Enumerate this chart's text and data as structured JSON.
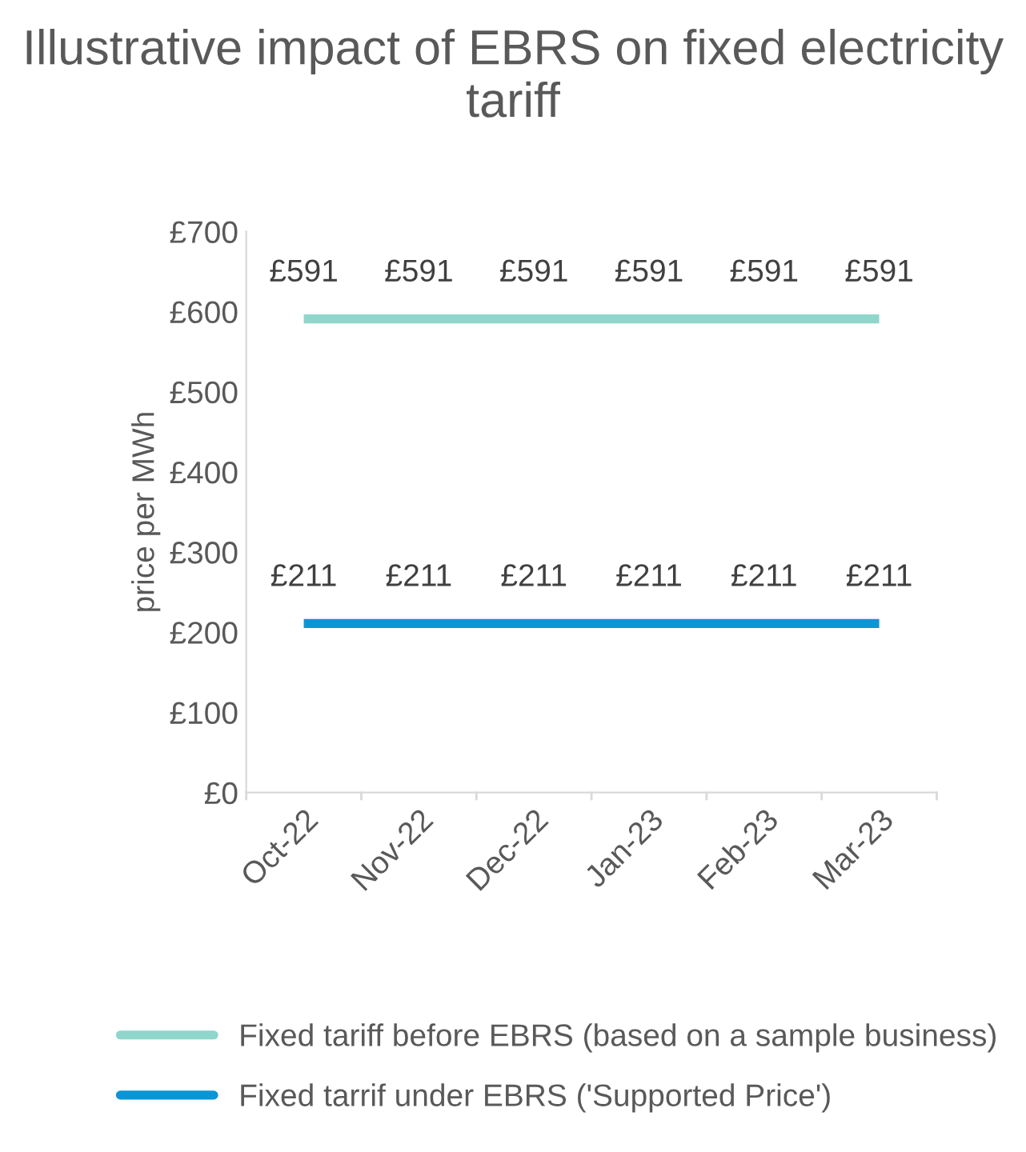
{
  "chart_data": {
    "type": "line",
    "title": "Illustrative impact of EBRS on fixed electricity tariff",
    "ylabel": "price per MWh",
    "categories": [
      "Oct-22",
      "Nov-22",
      "Dec-22",
      "Jan-23",
      "Feb-23",
      "Mar-23"
    ],
    "series": [
      {
        "name": "Fixed tariff before EBRS (based on a sample business)",
        "color": "#8fd6cc",
        "values": [
          591,
          591,
          591,
          591,
          591,
          591
        ],
        "value_labels": [
          "£591",
          "£591",
          "£591",
          "£591",
          "£591",
          "£591"
        ]
      },
      {
        "name": "Fixed tarrif under EBRS ('Supported Price')",
        "color": "#0a96d6",
        "values": [
          211,
          211,
          211,
          211,
          211,
          211
        ],
        "value_labels": [
          "£211",
          "£211",
          "£211",
          "£211",
          "£211",
          "£211"
        ]
      }
    ],
    "ylim": [
      0,
      700
    ],
    "yticks": [
      {
        "value": 0,
        "label": "£0"
      },
      {
        "value": 100,
        "label": "£100"
      },
      {
        "value": 200,
        "label": "£200"
      },
      {
        "value": 300,
        "label": "£300"
      },
      {
        "value": 400,
        "label": "£400"
      },
      {
        "value": 500,
        "label": "£500"
      },
      {
        "value": 600,
        "label": "£600"
      },
      {
        "value": 700,
        "label": "£700"
      }
    ],
    "grid": false,
    "legend": "bottom",
    "marker": "none",
    "line_style": "solid"
  }
}
